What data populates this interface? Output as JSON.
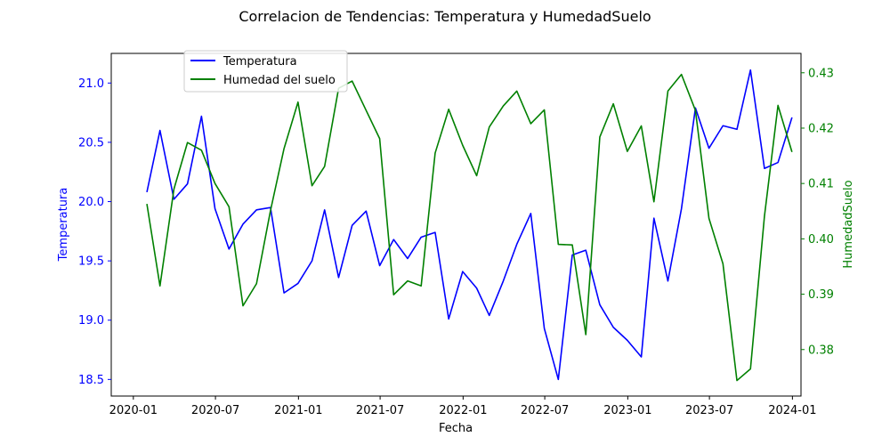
{
  "chart_data": {
    "type": "line",
    "title": "Correlacion de Tendencias: Temperatura y HumedadSuelo",
    "xlabel": "Fecha",
    "ylabel_left": "Temperatura",
    "ylabel_right": "HumedadSuelo",
    "xlim": [
      "2019-11-13",
      "2024-01-20"
    ],
    "ylim_left": [
      18.36,
      21.25
    ],
    "ylim_right": [
      0.3716,
      0.4335
    ],
    "x_ticks": [
      "2020-01",
      "2020-07",
      "2021-01",
      "2021-07",
      "2022-01",
      "2022-07",
      "2023-01",
      "2023-07",
      "2024-01"
    ],
    "y_ticks_left": [
      "18.5",
      "19.0",
      "19.5",
      "20.0",
      "20.5",
      "21.0"
    ],
    "y_ticks_right": [
      "0.38",
      "0.39",
      "0.40",
      "0.41",
      "0.42",
      "0.43"
    ],
    "legend_position": "upper-left",
    "grid": false,
    "x": [
      "2020-01-31",
      "2020-02-29",
      "2020-03-31",
      "2020-04-30",
      "2020-05-31",
      "2020-06-30",
      "2020-07-31",
      "2020-08-31",
      "2020-09-30",
      "2020-10-31",
      "2020-11-30",
      "2020-12-31",
      "2021-01-31",
      "2021-02-28",
      "2021-03-31",
      "2021-04-30",
      "2021-05-31",
      "2021-06-30",
      "2021-07-31",
      "2021-08-31",
      "2021-09-30",
      "2021-10-31",
      "2021-11-30",
      "2021-12-31",
      "2022-01-31",
      "2022-02-28",
      "2022-03-31",
      "2022-04-30",
      "2022-05-31",
      "2022-06-30",
      "2022-07-31",
      "2022-08-31",
      "2022-09-30",
      "2022-10-31",
      "2022-11-30",
      "2022-12-31",
      "2023-01-31",
      "2023-02-28",
      "2023-03-31",
      "2023-04-30",
      "2023-05-31",
      "2023-06-30",
      "2023-07-31",
      "2023-08-31",
      "2023-09-30",
      "2023-10-31",
      "2023-11-30",
      "2023-12-31"
    ],
    "series": [
      {
        "name": "Temperatura",
        "axis": "left",
        "color": "#0000ff",
        "values": [
          20.08,
          20.6,
          20.02,
          20.15,
          20.72,
          19.94,
          19.6,
          19.81,
          19.93,
          19.95,
          19.23,
          19.31,
          19.5,
          19.93,
          19.36,
          19.8,
          19.92,
          19.46,
          19.68,
          19.52,
          19.7,
          19.74,
          19.01,
          19.41,
          19.27,
          19.04,
          19.33,
          19.64,
          19.9,
          18.93,
          18.5,
          19.55,
          19.59,
          19.13,
          18.94,
          18.83,
          18.69,
          19.86,
          19.33,
          19.94,
          20.79,
          20.45,
          20.64,
          20.61,
          21.11,
          20.28,
          20.33,
          20.71
        ]
      },
      {
        "name": "Humedad del suelo",
        "axis": "right",
        "color": "#008000",
        "values": [
          0.4063,
          0.3915,
          0.409,
          0.4174,
          0.416,
          0.41,
          0.4058,
          0.3879,
          0.3919,
          0.4051,
          0.4163,
          0.4247,
          0.4096,
          0.4131,
          0.4272,
          0.4285,
          0.4232,
          0.4181,
          0.3899,
          0.3924,
          0.3915,
          0.4155,
          0.4234,
          0.4169,
          0.4114,
          0.4202,
          0.424,
          0.4267,
          0.4208,
          0.4233,
          0.399,
          0.3989,
          0.3827,
          0.4184,
          0.4244,
          0.4158,
          0.4204,
          0.4067,
          0.4267,
          0.4297,
          0.4232,
          0.4037,
          0.3955,
          0.3744,
          0.3765,
          0.4041,
          0.4241,
          0.4157
        ]
      }
    ]
  }
}
